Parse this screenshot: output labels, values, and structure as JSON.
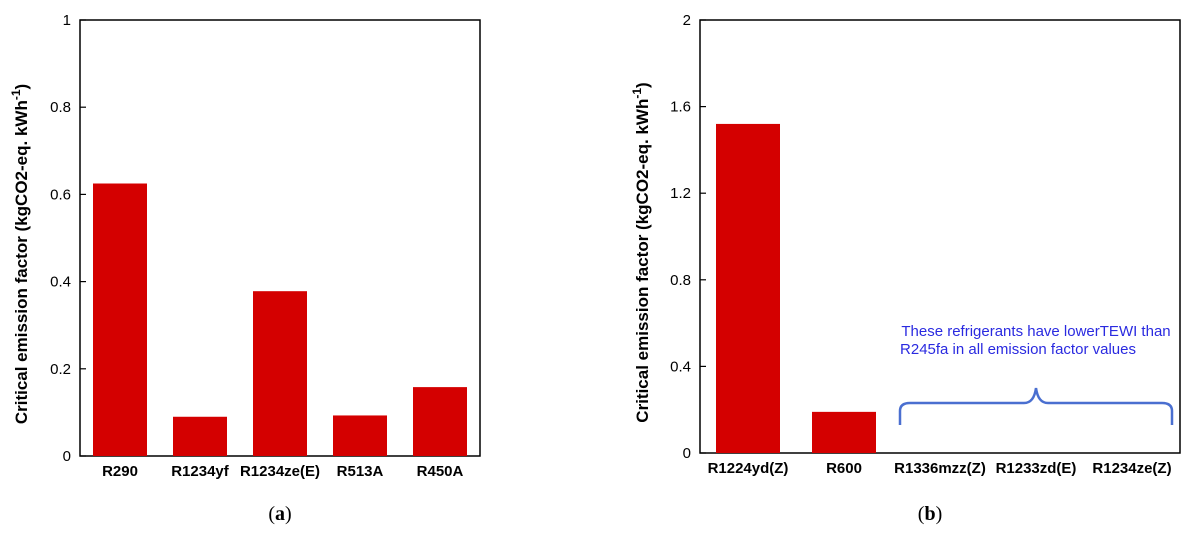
{
  "colors": {
    "bar": "#d40000",
    "axis": "#000000",
    "annotation_text": "#2a2ae0",
    "brace": "#4a6fd0"
  },
  "chart_data": [
    {
      "type": "bar",
      "caption_label": "a",
      "ylabel": "Critical emission factor (kgCO2-eq. kWh-1)",
      "ylabel_base": "Critical emission factor (kgCO2-eq. kWh",
      "ylabel_sup": "-1",
      "ylabel_end": ")",
      "ylim": [
        0,
        1
      ],
      "yticks": [
        0,
        0.2,
        0.4,
        0.6,
        0.8,
        1
      ],
      "ytick_labels": [
        "0",
        "0.2",
        "0.4",
        "0.6",
        "0.8",
        "1"
      ],
      "categories": [
        "R290",
        "R1234yf",
        "R1234ze(E)",
        "R513A",
        "R450A"
      ],
      "values": [
        0.625,
        0.09,
        0.378,
        0.093,
        0.158
      ]
    },
    {
      "type": "bar",
      "caption_label": "b",
      "ylabel": "Critical emission factor (kgCO2-eq. kWh-1)",
      "ylabel_base": "Critical emission factor (kgCO2-eq. kWh",
      "ylabel_sup": "-1",
      "ylabel_end": ")",
      "ylim": [
        0,
        2
      ],
      "yticks": [
        0,
        0.4,
        0.8,
        1.2,
        1.6,
        2
      ],
      "ytick_labels": [
        "0",
        "0.4",
        "0.8",
        "1.2",
        "1.6",
        "2"
      ],
      "categories": [
        "R1224yd(Z)",
        "R600",
        "R1336mzz(Z)",
        "R1233zd(E)",
        "R1234ze(Z)"
      ],
      "values": [
        1.52,
        0.19,
        null,
        null,
        null
      ],
      "annotation": {
        "lines": [
          "These refrigerants have lowerTEWI than",
          "R245fa in all emission factor values"
        ],
        "spans_categories": [
          "R1336mzz(Z)",
          "R1233zd(E)",
          "R1234ze(Z)"
        ]
      }
    }
  ]
}
